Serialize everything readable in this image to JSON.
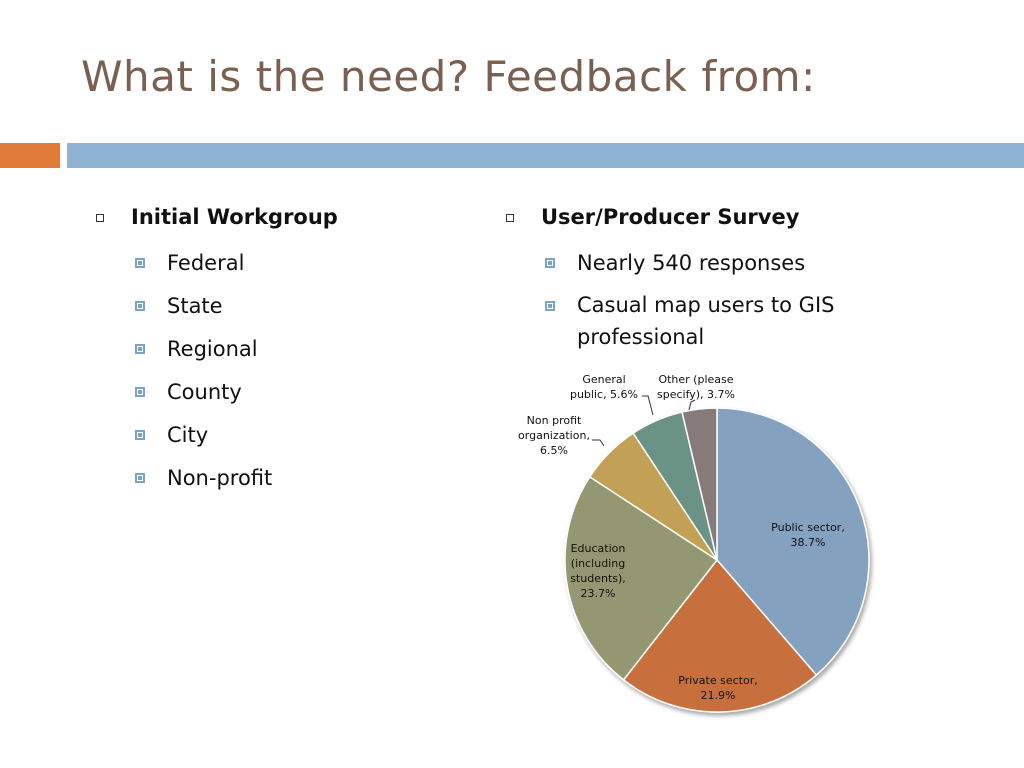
{
  "title": "What is the need?  Feedback from:",
  "colors": {
    "title": "#7a6050",
    "accent_bar": "#e07b39",
    "main_bar": "#8fb4d3"
  },
  "left_column": {
    "heading": "Initial Workgroup",
    "items": [
      "Federal",
      "State",
      "Regional",
      "County",
      "City",
      "Non-profit"
    ]
  },
  "right_column": {
    "heading": "User/Producer Survey",
    "items": [
      "Nearly 540 responses",
      "Casual map users to GIS professional"
    ]
  },
  "chart_data": {
    "type": "pie",
    "title": "",
    "slices": [
      {
        "label": "Public sector,",
        "value_text": "38.7%",
        "value": 38.7,
        "color": "#84a2c0"
      },
      {
        "label": "Private sector,",
        "value_text": "21.9%",
        "value": 21.9,
        "color": "#c8703d"
      },
      {
        "label": "Education (including students),",
        "value_text": "23.7%",
        "value": 23.7,
        "color": "#939872"
      },
      {
        "label": "Non profit organization,",
        "value_text": "6.5%",
        "value": 6.5,
        "color": "#c2a055"
      },
      {
        "label": "General public,",
        "value_text": "5.6%",
        "value": 5.6,
        "color": "#6b9285"
      },
      {
        "label": "Other (please specify),",
        "value_text": "3.7%",
        "value": 3.7,
        "color": "#877a7a"
      }
    ]
  }
}
